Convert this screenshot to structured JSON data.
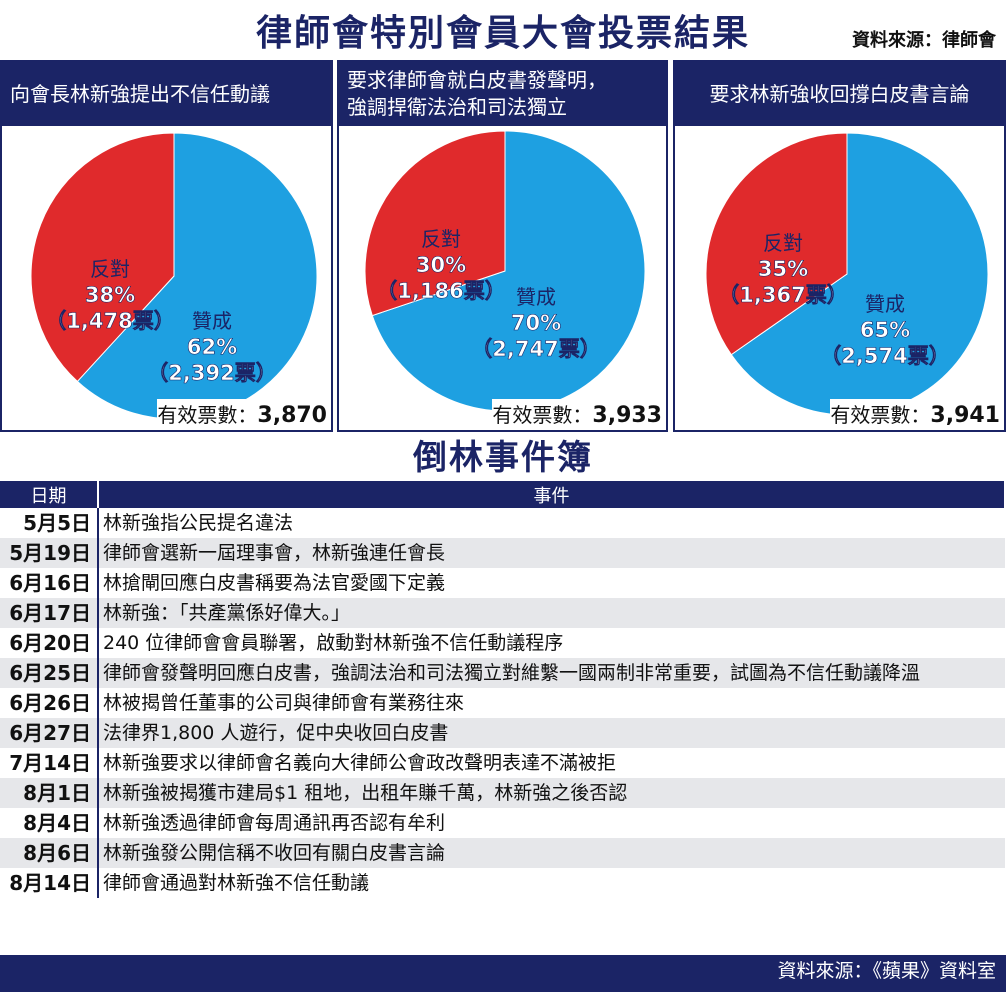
{
  "title": "律師會特別會員大會投票結果",
  "source_top": "資料來源：律師會",
  "valid_label": "有效票數：",
  "colors": {
    "against": "#e02a2c",
    "for": "#1ea0e1",
    "navy": "#1b2466"
  },
  "chart_data": [
    {
      "type": "pie",
      "title": "向會長林新強提出不信任動議",
      "slices": [
        {
          "label": "反對",
          "percent_label": "38%",
          "votes_label": "（1,478票）",
          "value": 1478
        },
        {
          "label": "贊成",
          "percent_label": "62%",
          "votes_label": "（2,392票）",
          "value": 2392
        }
      ],
      "valid_votes": "3,870"
    },
    {
      "type": "pie",
      "title": "要求律師會就白皮書發聲明，\n強調捍衛法治和司法獨立",
      "slices": [
        {
          "label": "反對",
          "percent_label": "30%",
          "votes_label": "（1,186票）",
          "value": 1186
        },
        {
          "label": "贊成",
          "percent_label": "70%",
          "votes_label": "（2,747票）",
          "value": 2747
        }
      ],
      "valid_votes": "3,933"
    },
    {
      "type": "pie",
      "title": "要求林新強收回撐白皮書言論",
      "slices": [
        {
          "label": "反對",
          "percent_label": "35%",
          "votes_label": "（1,367票）",
          "value": 1367
        },
        {
          "label": "贊成",
          "percent_label": "65%",
          "votes_label": "（2,574票）",
          "value": 2574
        }
      ],
      "valid_votes": "3,941"
    }
  ],
  "events_title": "倒林事件簿",
  "events_header": {
    "date": "日期",
    "event": "事件"
  },
  "events": [
    {
      "date": "5月5日",
      "event": "林新強指公民提名違法"
    },
    {
      "date": "5月19日",
      "event": "律師會選新一屆理事會，林新強連任會長"
    },
    {
      "date": "6月16日",
      "event": "林搶閘回應白皮書稱要為法官愛國下定義"
    },
    {
      "date": "6月17日",
      "event": "林新強：「共產黨係好偉大。」"
    },
    {
      "date": "6月20日",
      "event": "240 位律師會會員聯署，啟動對林新強不信任動議程序"
    },
    {
      "date": "6月25日",
      "event": "律師會發聲明回應白皮書，強調法治和司法獨立對維繫一國兩制非常重要，試圖為不信任動議降溫"
    },
    {
      "date": "6月26日",
      "event": "林被揭曾任董事的公司與律師會有業務往來"
    },
    {
      "date": "6月27日",
      "event": "法律界1,800 人遊行，促中央收回白皮書"
    },
    {
      "date": "7月14日",
      "event": "林新強要求以律師會名義向大律師公會政改聲明表達不滿被拒"
    },
    {
      "date": "8月1日",
      "event": "林新強被揭獲市建局$1 租地，出租年賺千萬，林新強之後否認"
    },
    {
      "date": "8月4日",
      "event": "林新強透過律師會每周通訊再否認有牟利"
    },
    {
      "date": "8月6日",
      "event": "林新強發公開信稱不收回有關白皮書言論"
    },
    {
      "date": "8月14日",
      "event": "律師會通過對林新強不信任動議"
    }
  ],
  "source_bottom": "資料來源：《蘋果》資料室"
}
